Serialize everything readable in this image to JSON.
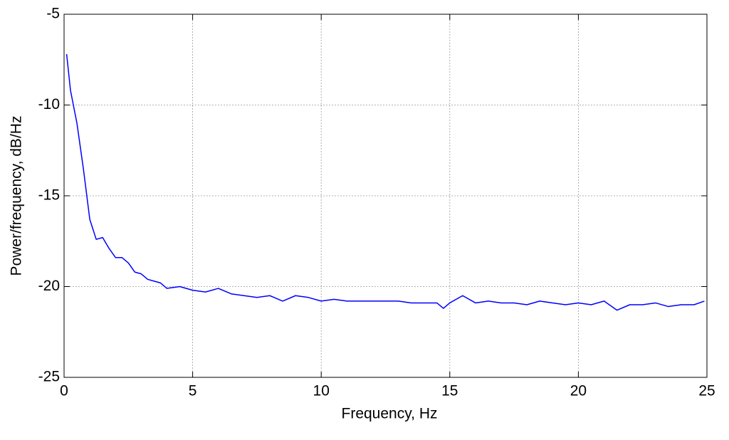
{
  "chart_data": {
    "type": "line",
    "xlabel": "Frequency, Hz",
    "ylabel": "Power/frequency, dB/Hz",
    "x": [
      0.1,
      0.25,
      0.5,
      0.75,
      1.0,
      1.25,
      1.5,
      1.75,
      2.0,
      2.25,
      2.5,
      2.75,
      3.0,
      3.25,
      3.5,
      3.75,
      4.0,
      4.5,
      5.0,
      5.5,
      6.0,
      6.5,
      7.0,
      7.5,
      8.0,
      8.5,
      9.0,
      9.5,
      10.0,
      10.5,
      11.0,
      11.5,
      12.0,
      12.5,
      13.0,
      13.5,
      14.0,
      14.5,
      14.75,
      15.0,
      15.5,
      16.0,
      16.5,
      17.0,
      17.5,
      18.0,
      18.5,
      19.0,
      19.5,
      20.0,
      20.5,
      21.0,
      21.5,
      22.0,
      22.5,
      23.0,
      23.5,
      24.0,
      24.5,
      24.9
    ],
    "values": [
      -7.2,
      -9.2,
      -11.0,
      -13.5,
      -16.3,
      -17.4,
      -17.3,
      -17.9,
      -18.4,
      -18.4,
      -18.7,
      -19.2,
      -19.3,
      -19.6,
      -19.7,
      -19.8,
      -20.1,
      -20.0,
      -20.2,
      -20.3,
      -20.1,
      -20.4,
      -20.5,
      -20.6,
      -20.5,
      -20.8,
      -20.5,
      -20.6,
      -20.8,
      -20.7,
      -20.8,
      -20.8,
      -20.8,
      -20.8,
      -20.8,
      -20.9,
      -20.9,
      -20.9,
      -21.2,
      -20.9,
      -20.5,
      -20.9,
      -20.8,
      -20.9,
      -20.9,
      -21.0,
      -20.8,
      -20.9,
      -21.0,
      -20.9,
      -21.0,
      -20.8,
      -21.3,
      -21.0,
      -21.0,
      -20.9,
      -21.1,
      -21.0,
      -21.0,
      -20.8
    ],
    "color": "#0000ff",
    "xlim": [
      0,
      25
    ],
    "xticks": [
      0,
      5,
      10,
      15,
      20,
      25
    ],
    "ylim": [
      -25,
      -5
    ],
    "yticks": [
      -25,
      -20,
      -15,
      -10,
      -5
    ],
    "grid": true
  }
}
